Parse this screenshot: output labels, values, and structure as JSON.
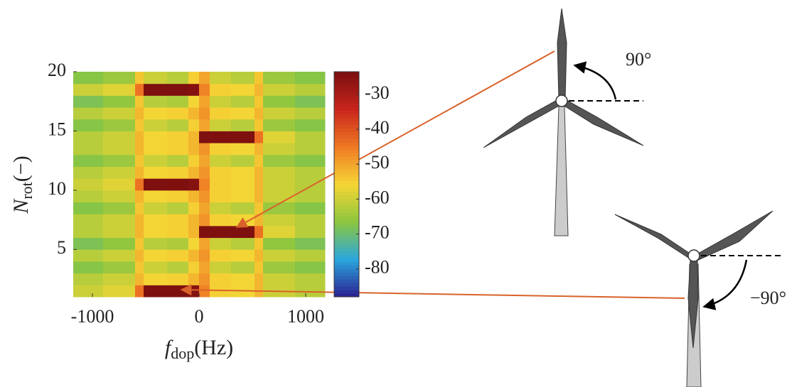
{
  "chart_data": {
    "type": "heatmap",
    "x_label": {
      "main": "f",
      "sub": "dop",
      "unit": "(Hz)"
    },
    "y_label": {
      "main": "N",
      "sub": "rot",
      "unit": "(−)"
    },
    "xlim": [
      -1180,
      1180
    ],
    "xticks": [
      -1000,
      0,
      1000
    ],
    "ylim": [
      1,
      20
    ],
    "yticks": [
      5,
      10,
      15,
      20
    ],
    "x_edges": [
      -1180,
      -900,
      -600,
      -520,
      -300,
      -100,
      0,
      100,
      300,
      520,
      600,
      900,
      1180
    ],
    "y_edges": [
      1,
      2,
      3,
      4,
      5,
      6,
      7,
      8,
      9,
      10,
      11,
      12,
      13,
      14,
      15,
      16,
      17,
      18,
      19,
      20
    ],
    "z": [
      [
        -60,
        -58,
        -44,
        -24,
        -24,
        -25,
        -46,
        -55,
        -56,
        -52,
        -60,
        -62
      ],
      [
        -62,
        -60,
        -52,
        -56,
        -55,
        -52,
        -48,
        -55,
        -56,
        -52,
        -60,
        -62
      ],
      [
        -67,
        -65,
        -54,
        -60,
        -62,
        -55,
        -50,
        -60,
        -62,
        -54,
        -65,
        -67
      ],
      [
        -62,
        -60,
        -52,
        -56,
        -55,
        -52,
        -48,
        -55,
        -56,
        -52,
        -60,
        -62
      ],
      [
        -68,
        -66,
        -54,
        -62,
        -63,
        -56,
        -50,
        -60,
        -62,
        -54,
        -66,
        -68
      ],
      [
        -62,
        -60,
        -52,
        -56,
        -55,
        -52,
        -24,
        -24,
        -24,
        -44,
        -58,
        -62
      ],
      [
        -62,
        -60,
        -52,
        -56,
        -55,
        -52,
        -48,
        -55,
        -56,
        -52,
        -60,
        -62
      ],
      [
        -67,
        -65,
        -54,
        -60,
        -62,
        -55,
        -50,
        -60,
        -62,
        -54,
        -65,
        -67
      ],
      [
        -62,
        -60,
        -52,
        -56,
        -55,
        -52,
        -48,
        -55,
        -56,
        -52,
        -60,
        -62
      ],
      [
        -60,
        -58,
        -44,
        -24,
        -24,
        -25,
        -46,
        -55,
        -56,
        -52,
        -60,
        -62
      ],
      [
        -62,
        -60,
        -52,
        -56,
        -55,
        -52,
        -48,
        -55,
        -56,
        -52,
        -60,
        -62
      ],
      [
        -67,
        -65,
        -54,
        -60,
        -62,
        -55,
        -50,
        -60,
        -62,
        -54,
        -65,
        -67
      ],
      [
        -62,
        -60,
        -52,
        -56,
        -55,
        -52,
        -48,
        -55,
        -56,
        -52,
        -60,
        -62
      ],
      [
        -62,
        -60,
        -52,
        -56,
        -55,
        -52,
        -24,
        -24,
        -24,
        -44,
        -58,
        -62
      ],
      [
        -67,
        -65,
        -54,
        -60,
        -62,
        -55,
        -50,
        -60,
        -62,
        -54,
        -65,
        -67
      ],
      [
        -62,
        -60,
        -52,
        -56,
        -55,
        -52,
        -48,
        -55,
        -56,
        -52,
        -60,
        -62
      ],
      [
        -68,
        -66,
        -54,
        -62,
        -63,
        -56,
        -50,
        -60,
        -62,
        -54,
        -66,
        -68
      ],
      [
        -60,
        -58,
        -44,
        -24,
        -24,
        -25,
        -46,
        -55,
        -56,
        -52,
        -60,
        -62
      ],
      [
        -67,
        -65,
        -54,
        -60,
        -62,
        -55,
        -50,
        -60,
        -62,
        -54,
        -65,
        -67
      ]
    ],
    "clim": [
      -88,
      -23.5
    ],
    "cticks": [
      -80,
      -70,
      -60,
      -50,
      -40,
      -30
    ],
    "colormap": [
      "#2b1f8f",
      "#2aa7de",
      "#8cc63f",
      "#f5d635",
      "#f07a24",
      "#c8251c",
      "#7a0f0f"
    ],
    "annotations": [
      "90°",
      "−90°"
    ]
  }
}
